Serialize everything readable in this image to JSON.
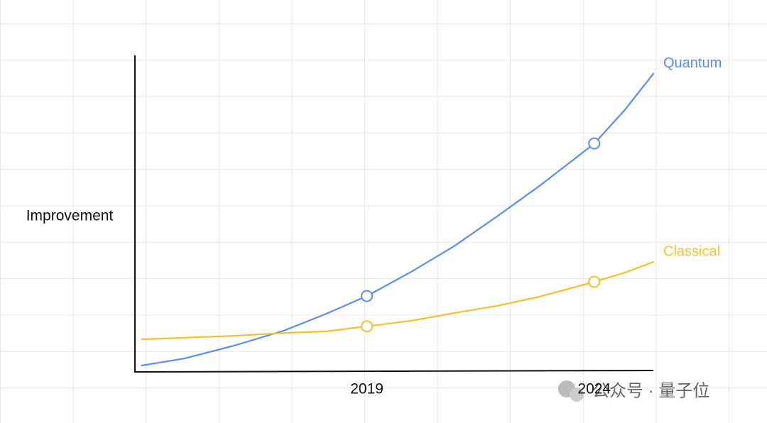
{
  "chart_data": {
    "type": "line",
    "y_label": "Improvement",
    "x": [
      2014.05,
      2014.98,
      2016.08,
      2017.17,
      2018.11,
      2019,
      2019.98,
      2020.92,
      2021.86,
      2022.8,
      2024,
      2024.67,
      2025.3
    ],
    "series": [
      {
        "name": "Quantum",
        "color": "#5b8def",
        "values": [
          1.8,
          4.0,
          8.1,
          12.8,
          18.2,
          23.8,
          31.5,
          39.6,
          49.0,
          58.7,
          72.1,
          82.7,
          94.2
        ]
      },
      {
        "name": "Classical",
        "color": "#f2c12e",
        "values": [
          10.1,
          10.6,
          11.2,
          12.1,
          12.6,
          14.2,
          16.0,
          18.4,
          20.7,
          23.6,
          28.3,
          31.2,
          34.6
        ]
      }
    ],
    "highlighted_x": [
      2019,
      2024
    ],
    "xlim": [
      2013.9,
      2025.3
    ],
    "xticks": [
      2019,
      2024
    ],
    "ylim": [
      0,
      100
    ],
    "watermark": "公众号 · 量子位"
  }
}
